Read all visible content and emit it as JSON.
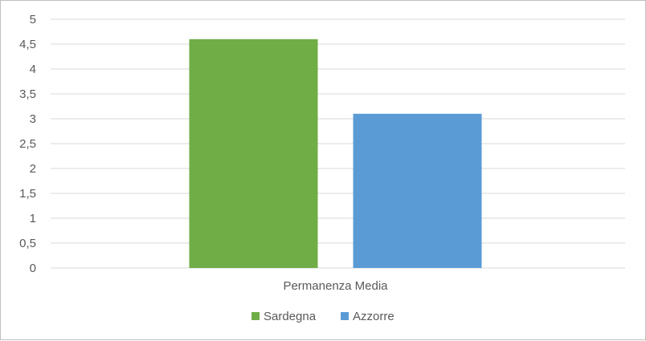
{
  "chart_data": {
    "type": "bar",
    "categories": [
      "Permanenza Media"
    ],
    "series": [
      {
        "name": "Sardegna",
        "values": [
          4.6
        ],
        "color": "#70ad47"
      },
      {
        "name": "Azzorre",
        "values": [
          3.1
        ],
        "color": "#5b9bd5"
      }
    ],
    "ylim": [
      0,
      5
    ],
    "yticks": [
      "0",
      "0,5",
      "1",
      "1,5",
      "2",
      "2,5",
      "3",
      "3,5",
      "4",
      "4,5",
      "5"
    ],
    "grid": true,
    "legend": "bottom"
  }
}
